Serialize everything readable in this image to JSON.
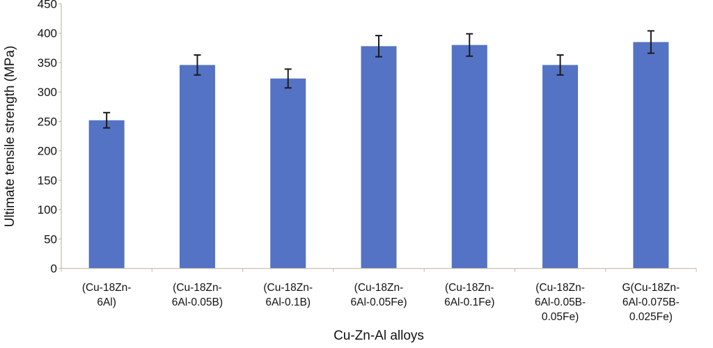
{
  "chart_data": {
    "type": "bar",
    "title": "",
    "xlabel": "Cu-Zn-Al alloys",
    "ylabel": "Ultimate tensile strength (MPa)",
    "ylim": [
      0,
      450
    ],
    "yticks": [
      0,
      50,
      100,
      150,
      200,
      250,
      300,
      350,
      400,
      450
    ],
    "grid": false,
    "categories": [
      [
        "(Cu-18Zn-",
        "6Al)"
      ],
      [
        "(Cu-18Zn-",
        "6Al-0.05B)"
      ],
      [
        "(Cu-18Zn-",
        "6Al-0.1B)"
      ],
      [
        "(Cu-18Zn-",
        "6Al-0.05Fe)"
      ],
      [
        "(Cu-18Zn-",
        "6Al-0.1Fe)"
      ],
      [
        "(Cu-18Zn-",
        "6Al-0.05B-",
        "0.05Fe)"
      ],
      [
        "G(Cu-18Zn-",
        "6Al-0.075B-",
        "0.025Fe)"
      ]
    ],
    "values": [
      252,
      346,
      323,
      378,
      380,
      346,
      385
    ],
    "errors": [
      13,
      17,
      16,
      18,
      19,
      17,
      19
    ],
    "bar_color": "#5573c4",
    "error_color": "#1a1a1a",
    "axis_color": "#c8b8a0"
  }
}
